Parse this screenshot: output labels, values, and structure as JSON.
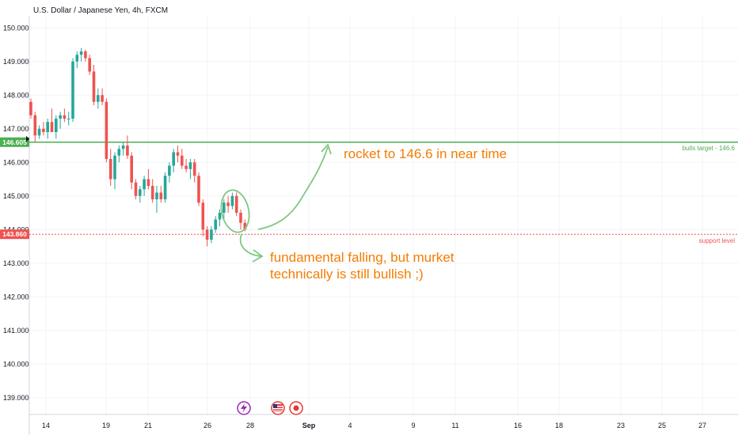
{
  "chart_data": {
    "type": "candlestick",
    "title": "U.S. Dollar / Japanese Yen, 4h, FXCM",
    "ylim": [
      138.5,
      150.5
    ],
    "y_ticks": [
      "150.000",
      "149.000",
      "148.000",
      "147.000",
      "146.000",
      "145.000",
      "144.000",
      "143.000",
      "142.000",
      "141.000",
      "140.000",
      "139.000"
    ],
    "x_ticks": [
      "14",
      "19",
      "21",
      "26",
      "28",
      "Sep",
      "4",
      "9",
      "11",
      "16",
      "18",
      "23",
      "25",
      "27"
    ],
    "grid": true,
    "colors": {
      "up": "#26a69a",
      "down": "#ef5350",
      "green_line": "#4caf50",
      "red_line": "#ef5350",
      "annotation": "#f57c00",
      "arrow": "#81c784"
    },
    "candles_ohlc": [
      [
        147.8,
        147.9,
        147.3,
        147.4
      ],
      [
        147.4,
        147.5,
        146.6,
        146.8
      ],
      [
        146.8,
        147.1,
        146.7,
        147.0
      ],
      [
        147.0,
        147.2,
        146.8,
        146.9
      ],
      [
        146.9,
        147.3,
        146.7,
        147.2
      ],
      [
        147.2,
        147.6,
        146.9,
        146.9
      ],
      [
        146.9,
        147.4,
        146.7,
        147.3
      ],
      [
        147.3,
        147.5,
        147.0,
        147.4
      ],
      [
        147.4,
        147.6,
        147.2,
        147.3
      ],
      [
        147.3,
        147.5,
        147.1,
        147.3
      ],
      [
        147.3,
        149.1,
        147.2,
        149.0
      ],
      [
        149.0,
        149.3,
        148.8,
        149.2
      ],
      [
        149.2,
        149.4,
        149.0,
        149.3
      ],
      [
        149.3,
        149.35,
        149.0,
        149.1
      ],
      [
        149.1,
        149.2,
        148.6,
        148.7
      ],
      [
        148.7,
        148.9,
        147.7,
        147.8
      ],
      [
        147.8,
        148.2,
        147.6,
        148.0
      ],
      [
        148.0,
        148.2,
        147.7,
        147.8
      ],
      [
        147.8,
        147.9,
        146.0,
        146.1
      ],
      [
        146.1,
        146.4,
        145.3,
        145.5
      ],
      [
        145.5,
        146.3,
        145.2,
        146.2
      ],
      [
        146.2,
        146.5,
        146.0,
        146.4
      ],
      [
        146.4,
        146.6,
        146.2,
        146.5
      ],
      [
        146.5,
        146.8,
        146.1,
        146.2
      ],
      [
        146.2,
        146.3,
        145.2,
        145.4
      ],
      [
        145.4,
        145.5,
        144.9,
        145.0
      ],
      [
        145.0,
        145.3,
        144.8,
        145.2
      ],
      [
        145.2,
        145.6,
        145.0,
        145.5
      ],
      [
        145.5,
        145.8,
        145.2,
        145.3
      ],
      [
        145.3,
        145.5,
        144.8,
        144.9
      ],
      [
        144.9,
        145.3,
        144.5,
        145.1
      ],
      [
        145.1,
        145.3,
        144.8,
        144.9
      ],
      [
        144.9,
        145.7,
        144.8,
        145.6
      ],
      [
        145.6,
        146.0,
        145.4,
        145.9
      ],
      [
        145.9,
        146.4,
        145.7,
        146.3
      ],
      [
        146.3,
        146.5,
        146.0,
        146.2
      ],
      [
        146.2,
        146.4,
        145.8,
        145.9
      ],
      [
        145.9,
        146.1,
        145.7,
        145.8
      ],
      [
        145.8,
        146.1,
        145.5,
        146.0
      ],
      [
        146.0,
        146.1,
        145.4,
        145.6
      ],
      [
        145.6,
        145.7,
        144.7,
        144.8
      ],
      [
        144.8,
        144.9,
        143.8,
        144.0
      ],
      [
        144.0,
        144.1,
        143.5,
        143.7
      ],
      [
        143.7,
        144.1,
        143.6,
        144.0
      ],
      [
        144.0,
        144.4,
        143.9,
        144.3
      ],
      [
        144.3,
        144.6,
        144.1,
        144.5
      ],
      [
        144.5,
        144.9,
        144.3,
        144.8
      ],
      [
        144.8,
        145.0,
        144.5,
        144.7
      ],
      [
        144.7,
        145.1,
        144.6,
        145.0
      ],
      [
        145.0,
        145.1,
        144.4,
        144.5
      ],
      [
        144.5,
        144.6,
        144.0,
        144.2
      ],
      [
        144.2,
        144.3,
        143.95,
        144.0
      ]
    ],
    "horizontal_lines": [
      {
        "name": "bulls target",
        "value": 146.6,
        "label": "bulls target - 146.6",
        "tag": "146.605"
      },
      {
        "name": "support level",
        "value": 143.86,
        "label": "support level",
        "tag": "143.860"
      }
    ],
    "annotations": [
      {
        "text": "rocket to 146.6 in near time"
      },
      {
        "text": "fundamental falling, but murket"
      },
      {
        "text": "technically is still bullish ;)"
      }
    ]
  }
}
